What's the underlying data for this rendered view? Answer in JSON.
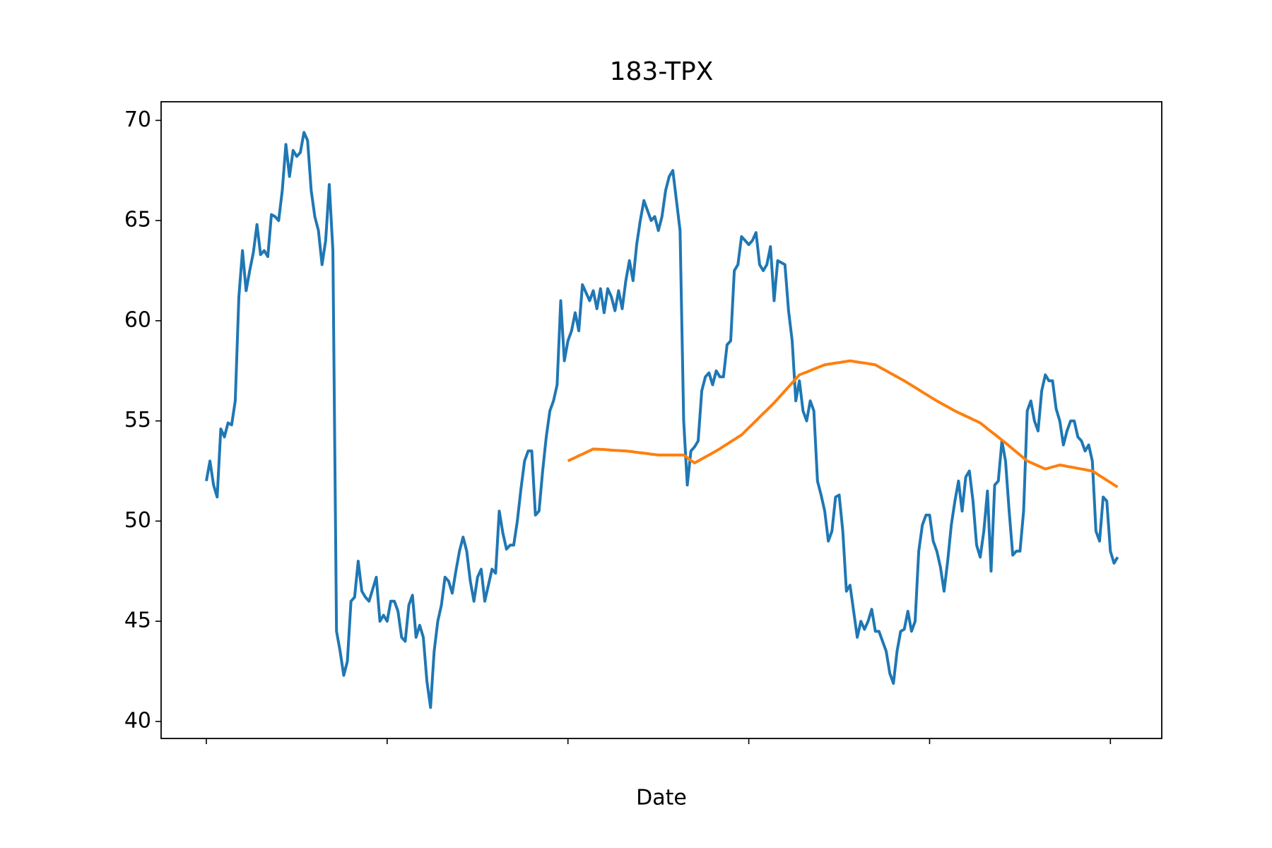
{
  "chart_data": {
    "type": "line",
    "title": "183-TPX",
    "xlabel": "Date",
    "xlim": [
      -12.5,
      264.2
    ],
    "xticks": [
      0,
      50,
      100,
      150,
      200,
      250
    ],
    "ylim": [
      39.15,
      70.93
    ],
    "yticks": [
      40,
      45,
      50,
      55,
      60,
      65,
      70
    ],
    "series": [
      {
        "color": "#1f77b4",
        "values": [
          52.0,
          53.0,
          51.8,
          51.2,
          54.6,
          54.2,
          54.9,
          54.8,
          56.0,
          61.2,
          63.5,
          61.5,
          62.5,
          63.4,
          64.8,
          63.3,
          63.5,
          63.2,
          65.3,
          65.2,
          65.0,
          66.5,
          68.8,
          67.2,
          68.5,
          68.2,
          68.4,
          69.4,
          69.0,
          66.5,
          65.2,
          64.5,
          62.8,
          64.0,
          66.8,
          63.5,
          44.5,
          43.5,
          42.3,
          43.0,
          46.0,
          46.2,
          48.0,
          46.5,
          46.2,
          46.0,
          46.6,
          47.2,
          45.0,
          45.3,
          45.0,
          46.0,
          46.0,
          45.5,
          44.2,
          44.0,
          45.8,
          46.3,
          44.2,
          44.8,
          44.2,
          42.0,
          40.7,
          43.5,
          45.0,
          45.8,
          47.2,
          47.0,
          46.4,
          47.5,
          48.5,
          49.2,
          48.5,
          47.0,
          46.0,
          47.2,
          47.6,
          46.0,
          46.8,
          47.6,
          47.4,
          50.5,
          49.4,
          48.6,
          48.8,
          48.8,
          50.0,
          51.6,
          53.0,
          53.5,
          53.5,
          50.3,
          50.5,
          52.5,
          54.2,
          55.5,
          56.0,
          56.8,
          61.0,
          58.0,
          59.0,
          59.5,
          60.4,
          59.5,
          61.8,
          61.4,
          61.0,
          61.5,
          60.6,
          61.6,
          60.4,
          61.6,
          61.2,
          60.5,
          61.5,
          60.6,
          62.0,
          63.0,
          62.0,
          63.8,
          65.0,
          66.0,
          65.5,
          65.0,
          65.2,
          64.5,
          65.2,
          66.5,
          67.2,
          67.5,
          66.0,
          64.5,
          55.0,
          51.8,
          53.5,
          53.7,
          54.0,
          56.5,
          57.2,
          57.4,
          56.8,
          57.5,
          57.2,
          57.2,
          58.8,
          59.0,
          62.5,
          62.8,
          64.2,
          64.0,
          63.8,
          64.0,
          64.4,
          62.8,
          62.5,
          62.8,
          63.7,
          61.0,
          63.0,
          62.9,
          62.8,
          60.5,
          59.0,
          56.0,
          57.0,
          55.5,
          55.0,
          56.0,
          55.5,
          52.0,
          51.3,
          50.5,
          49.0,
          49.5,
          51.2,
          51.3,
          49.5,
          46.5,
          46.8,
          45.5,
          44.2,
          45.0,
          44.6,
          45.0,
          45.6,
          44.5,
          44.5,
          44.0,
          43.5,
          42.4,
          41.9,
          43.5,
          44.5,
          44.6,
          45.5,
          44.5,
          45.0,
          48.5,
          49.8,
          50.3,
          50.3,
          49.0,
          48.5,
          47.7,
          46.5,
          48.0,
          49.8,
          51.0,
          52.0,
          50.5,
          52.2,
          52.5,
          51.0,
          48.8,
          48.2,
          49.5,
          51.5,
          47.5,
          51.8,
          52.0,
          54.0,
          53.0,
          50.5,
          48.3,
          48.5,
          48.5,
          50.5,
          55.5,
          56.0,
          55.0,
          54.5,
          56.5,
          57.3,
          57.0,
          57.0,
          55.6,
          55.0,
          53.8,
          54.5,
          55.0,
          55.0,
          54.2,
          54.0,
          53.5,
          53.8,
          53.0,
          49.5,
          49.0,
          51.2,
          51.0,
          48.5,
          47.9,
          48.2
        ]
      },
      {
        "color": "#ff7f0e",
        "values": [
          null,
          null,
          null,
          null,
          null,
          null,
          null,
          null,
          null,
          null,
          null,
          null,
          null,
          null,
          null,
          null,
          null,
          null,
          null,
          null,
          null,
          null,
          null,
          null,
          null,
          null,
          null,
          null,
          null,
          null,
          null,
          null,
          null,
          null,
          null,
          null,
          null,
          null,
          null,
          null,
          null,
          null,
          null,
          null,
          null,
          null,
          null,
          null,
          null,
          null,
          null,
          null,
          null,
          null,
          null,
          null,
          null,
          null,
          null,
          null,
          null,
          null,
          null,
          null,
          null,
          null,
          null,
          null,
          null,
          null,
          null,
          null,
          null,
          null,
          null,
          null,
          null,
          null,
          null,
          null,
          null,
          null,
          null,
          null,
          null,
          null,
          null,
          null,
          null,
          null,
          null,
          null,
          null,
          null,
          null,
          null,
          null,
          null,
          null,
          null,
          53.0,
          53.09,
          53.17,
          53.26,
          53.34,
          53.43,
          53.51,
          53.6,
          53.59,
          53.58,
          53.57,
          53.56,
          53.54,
          53.53,
          53.52,
          53.51,
          53.5,
          53.48,
          53.46,
          53.43,
          53.41,
          53.39,
          53.37,
          53.34,
          53.32,
          53.3,
          53.3,
          53.3,
          53.3,
          53.3,
          53.3,
          53.3,
          53.3,
          53.17,
          53.03,
          52.9,
          53.0,
          53.1,
          53.2,
          53.3,
          53.4,
          53.5,
          53.61,
          53.73,
          53.84,
          53.96,
          54.07,
          54.19,
          54.3,
          54.48,
          54.66,
          54.83,
          55.01,
          55.19,
          55.37,
          55.54,
          55.72,
          55.9,
          56.1,
          56.3,
          56.5,
          56.7,
          56.9,
          57.1,
          57.3,
          57.37,
          57.44,
          57.51,
          57.59,
          57.66,
          57.73,
          57.8,
          57.83,
          57.86,
          57.89,
          57.91,
          57.94,
          57.97,
          58.0,
          57.97,
          57.94,
          57.91,
          57.89,
          57.86,
          57.83,
          57.8,
          57.7,
          57.6,
          57.5,
          57.4,
          57.3,
          57.2,
          57.1,
          57.0,
          56.89,
          56.78,
          56.67,
          56.56,
          56.44,
          56.33,
          56.22,
          56.11,
          56.0,
          55.9,
          55.8,
          55.7,
          55.6,
          55.5,
          55.41,
          55.33,
          55.24,
          55.16,
          55.07,
          54.99,
          54.9,
          54.76,
          54.61,
          54.47,
          54.33,
          54.19,
          54.04,
          53.9,
          53.75,
          53.6,
          53.45,
          53.3,
          53.15,
          53.0,
          52.92,
          52.84,
          52.76,
          52.68,
          52.6,
          52.65,
          52.7,
          52.75,
          52.8,
          52.77,
          52.73,
          52.7,
          52.67,
          52.63,
          52.6,
          52.57,
          52.53,
          52.5,
          52.39,
          52.27,
          52.16,
          52.04,
          51.93,
          51.81,
          51.7
        ]
      }
    ]
  }
}
